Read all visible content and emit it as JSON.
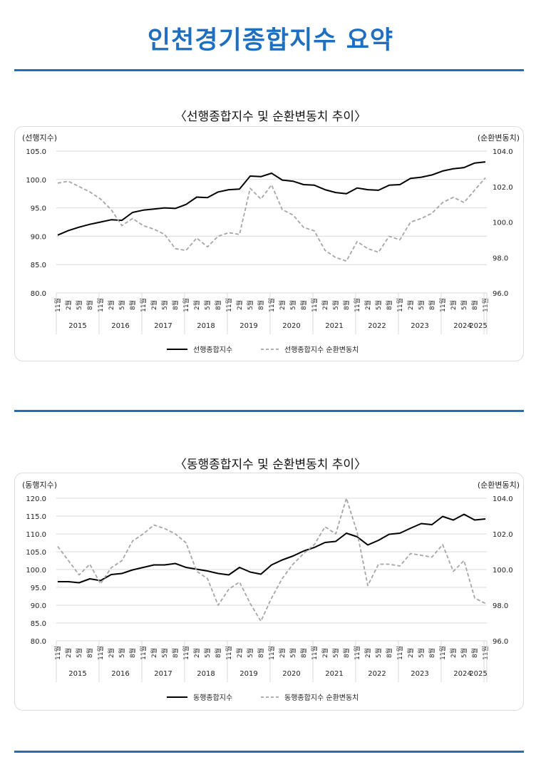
{
  "title": "인천경기종합지수 요약",
  "colors": {
    "accent": "#1f6fc0",
    "series_solid": "#000000",
    "series_dashed": "#a6a6a6",
    "grid": "#d9d9d9"
  },
  "chart_data": [
    {
      "type": "line",
      "title": "〈선행종합지수 및 순환변동치 추이〉",
      "ylabel": "(선행지수)",
      "ylabel_right": "(순환변동치)",
      "ylim": [
        80,
        105
      ],
      "ylim_right": [
        96,
        104
      ],
      "yticks": [
        "80.0",
        "85.0",
        "90.0",
        "95.0",
        "100.0",
        "105.0"
      ],
      "yticks_right": [
        "96.0",
        "98.0",
        "100.0",
        "102.0",
        "104.0"
      ],
      "x": [
        "11월",
        "2월",
        "5월",
        "8월",
        "11월",
        "2월",
        "5월",
        "8월",
        "11월",
        "2월",
        "5월",
        "8월",
        "11월",
        "2월",
        "5월",
        "8월",
        "11월",
        "2월",
        "5월",
        "8월",
        "11월",
        "2월",
        "5월",
        "8월",
        "11월",
        "2월",
        "5월",
        "8월",
        "11월",
        "2월",
        "5월",
        "8월",
        "11월",
        "2월",
        "5월",
        "8월",
        "11월",
        "2월",
        "5월",
        "8월",
        "11월"
      ],
      "years": [
        "2015",
        "2016",
        "2017",
        "2018",
        "2019",
        "2020",
        "2021",
        "2022",
        "2023",
        "2024",
        "2025"
      ],
      "grid": true,
      "legend_position": "bottom",
      "series": [
        {
          "name": "선행종합지수",
          "axis": "left",
          "style": "solid",
          "values": [
            90.2,
            91.0,
            91.6,
            92.1,
            92.5,
            92.9,
            92.8,
            94.2,
            94.6,
            94.8,
            95.0,
            94.9,
            95.6,
            96.9,
            96.8,
            97.8,
            98.2,
            98.3,
            100.6,
            100.5,
            101.1,
            99.9,
            99.7,
            99.1,
            99.0,
            98.2,
            97.7,
            97.5,
            98.5,
            98.2,
            98.1,
            99.0,
            99.1,
            100.2,
            100.4,
            100.8,
            101.5,
            101.9,
            102.1,
            102.9,
            103.1
          ]
        },
        {
          "name": "선행종합지수 순환변동치",
          "axis": "right",
          "style": "dashed",
          "values": [
            102.2,
            102.3,
            102.0,
            101.7,
            101.3,
            100.7,
            99.8,
            100.2,
            99.8,
            99.6,
            99.3,
            98.5,
            98.4,
            99.1,
            98.6,
            99.2,
            99.4,
            99.3,
            101.9,
            101.3,
            102.1,
            100.7,
            100.4,
            99.7,
            99.5,
            98.4,
            98.0,
            97.8,
            98.9,
            98.5,
            98.3,
            99.2,
            99.0,
            100.0,
            100.2,
            100.5,
            101.1,
            101.4,
            101.1,
            101.8,
            102.5
          ]
        }
      ]
    },
    {
      "type": "line",
      "title": "〈동행종합지수 및 순환변동치 추이〉",
      "ylabel": "(동행지수)",
      "ylabel_right": "(순환변동치)",
      "ylim": [
        80,
        120
      ],
      "ylim_right": [
        96,
        104
      ],
      "yticks": [
        "80.0",
        "85.0",
        "90.0",
        "95.0",
        "100.0",
        "105.0",
        "110.0",
        "115.0",
        "120.0"
      ],
      "yticks_right": [
        "96.0",
        "98.0",
        "100.0",
        "102.0",
        "104.0"
      ],
      "x": [
        "11월",
        "2월",
        "5월",
        "8월",
        "11월",
        "2월",
        "5월",
        "8월",
        "11월",
        "2월",
        "5월",
        "8월",
        "11월",
        "2월",
        "5월",
        "8월",
        "11월",
        "2월",
        "5월",
        "8월",
        "11월",
        "2월",
        "5월",
        "8월",
        "11월",
        "2월",
        "5월",
        "8월",
        "11월",
        "2월",
        "5월",
        "8월",
        "11월",
        "2월",
        "5월",
        "8월",
        "11월",
        "2월",
        "5월",
        "8월",
        "11월"
      ],
      "years": [
        "2015",
        "2016",
        "2017",
        "2018",
        "2019",
        "2020",
        "2021",
        "2022",
        "2023",
        "2024",
        "2025"
      ],
      "grid": true,
      "legend_position": "bottom",
      "series": [
        {
          "name": "동행종합지수",
          "axis": "left",
          "style": "solid",
          "values": [
            96.6,
            96.6,
            96.3,
            97.4,
            96.9,
            98.6,
            98.9,
            99.9,
            100.6,
            101.3,
            101.3,
            101.7,
            100.6,
            100.1,
            99.6,
            98.9,
            98.5,
            100.6,
            99.3,
            98.7,
            101.3,
            102.7,
            103.8,
            105.2,
            106.2,
            107.6,
            107.9,
            110.2,
            109.2,
            106.9,
            108.2,
            109.9,
            110.2,
            111.6,
            112.9,
            112.6,
            114.9,
            113.9,
            115.5,
            113.9,
            114.2
          ]
        },
        {
          "name": "동행종합지수 순환변동치",
          "axis": "right",
          "style": "dashed",
          "values": [
            101.3,
            100.5,
            99.7,
            100.3,
            99.2,
            100.1,
            100.5,
            101.6,
            102.0,
            102.5,
            102.3,
            102.0,
            101.5,
            99.9,
            99.5,
            98.0,
            98.9,
            99.3,
            98.1,
            97.1,
            98.4,
            99.5,
            100.3,
            100.9,
            101.4,
            102.4,
            102.0,
            104.0,
            102.1,
            99.1,
            100.3,
            100.3,
            100.2,
            100.9,
            100.8,
            100.7,
            101.4,
            99.9,
            100.5,
            98.4,
            98.1
          ]
        }
      ]
    }
  ]
}
